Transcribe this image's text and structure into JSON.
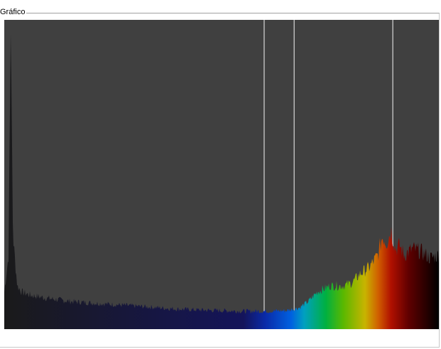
{
  "window": {
    "group_title": "Gráfico"
  },
  "chart_data": {
    "type": "area",
    "title": "",
    "xlabel": "",
    "ylabel": "",
    "plot_background": "#404040",
    "marker_line_color": "#d8d8d8",
    "x_range": [
      0,
      100
    ],
    "y_range": [
      0,
      100
    ],
    "grid": false,
    "spectrum_colors": [
      "#1a1a1a",
      "#14145a",
      "#0a2aa8",
      "#0060e0",
      "#00a0c0",
      "#00b040",
      "#5ab800",
      "#c8b400",
      "#d06000",
      "#b01000",
      "#600000",
      "#000000"
    ],
    "marker_positions_x": [
      59.8,
      66.7,
      89.4
    ],
    "series": [
      {
        "x": [
          0,
          1,
          1.5,
          2,
          3,
          4,
          6,
          10,
          15,
          20,
          25,
          30,
          35,
          40,
          45,
          50,
          55,
          60,
          65,
          68,
          70,
          72,
          75,
          78,
          80,
          82,
          84,
          86,
          87,
          88,
          89,
          90,
          91,
          92,
          94,
          96,
          98,
          100
        ],
        "y": [
          12,
          24,
          100,
          30,
          14,
          12,
          11,
          10,
          9,
          8.5,
          8,
          7.5,
          7,
          6.5,
          6.2,
          6,
          5.8,
          5.8,
          6,
          7,
          9,
          12,
          14,
          14,
          15,
          18,
          20,
          24,
          30,
          28,
          32,
          26,
          27,
          24,
          26,
          25,
          23,
          24
        ]
      }
    ]
  }
}
